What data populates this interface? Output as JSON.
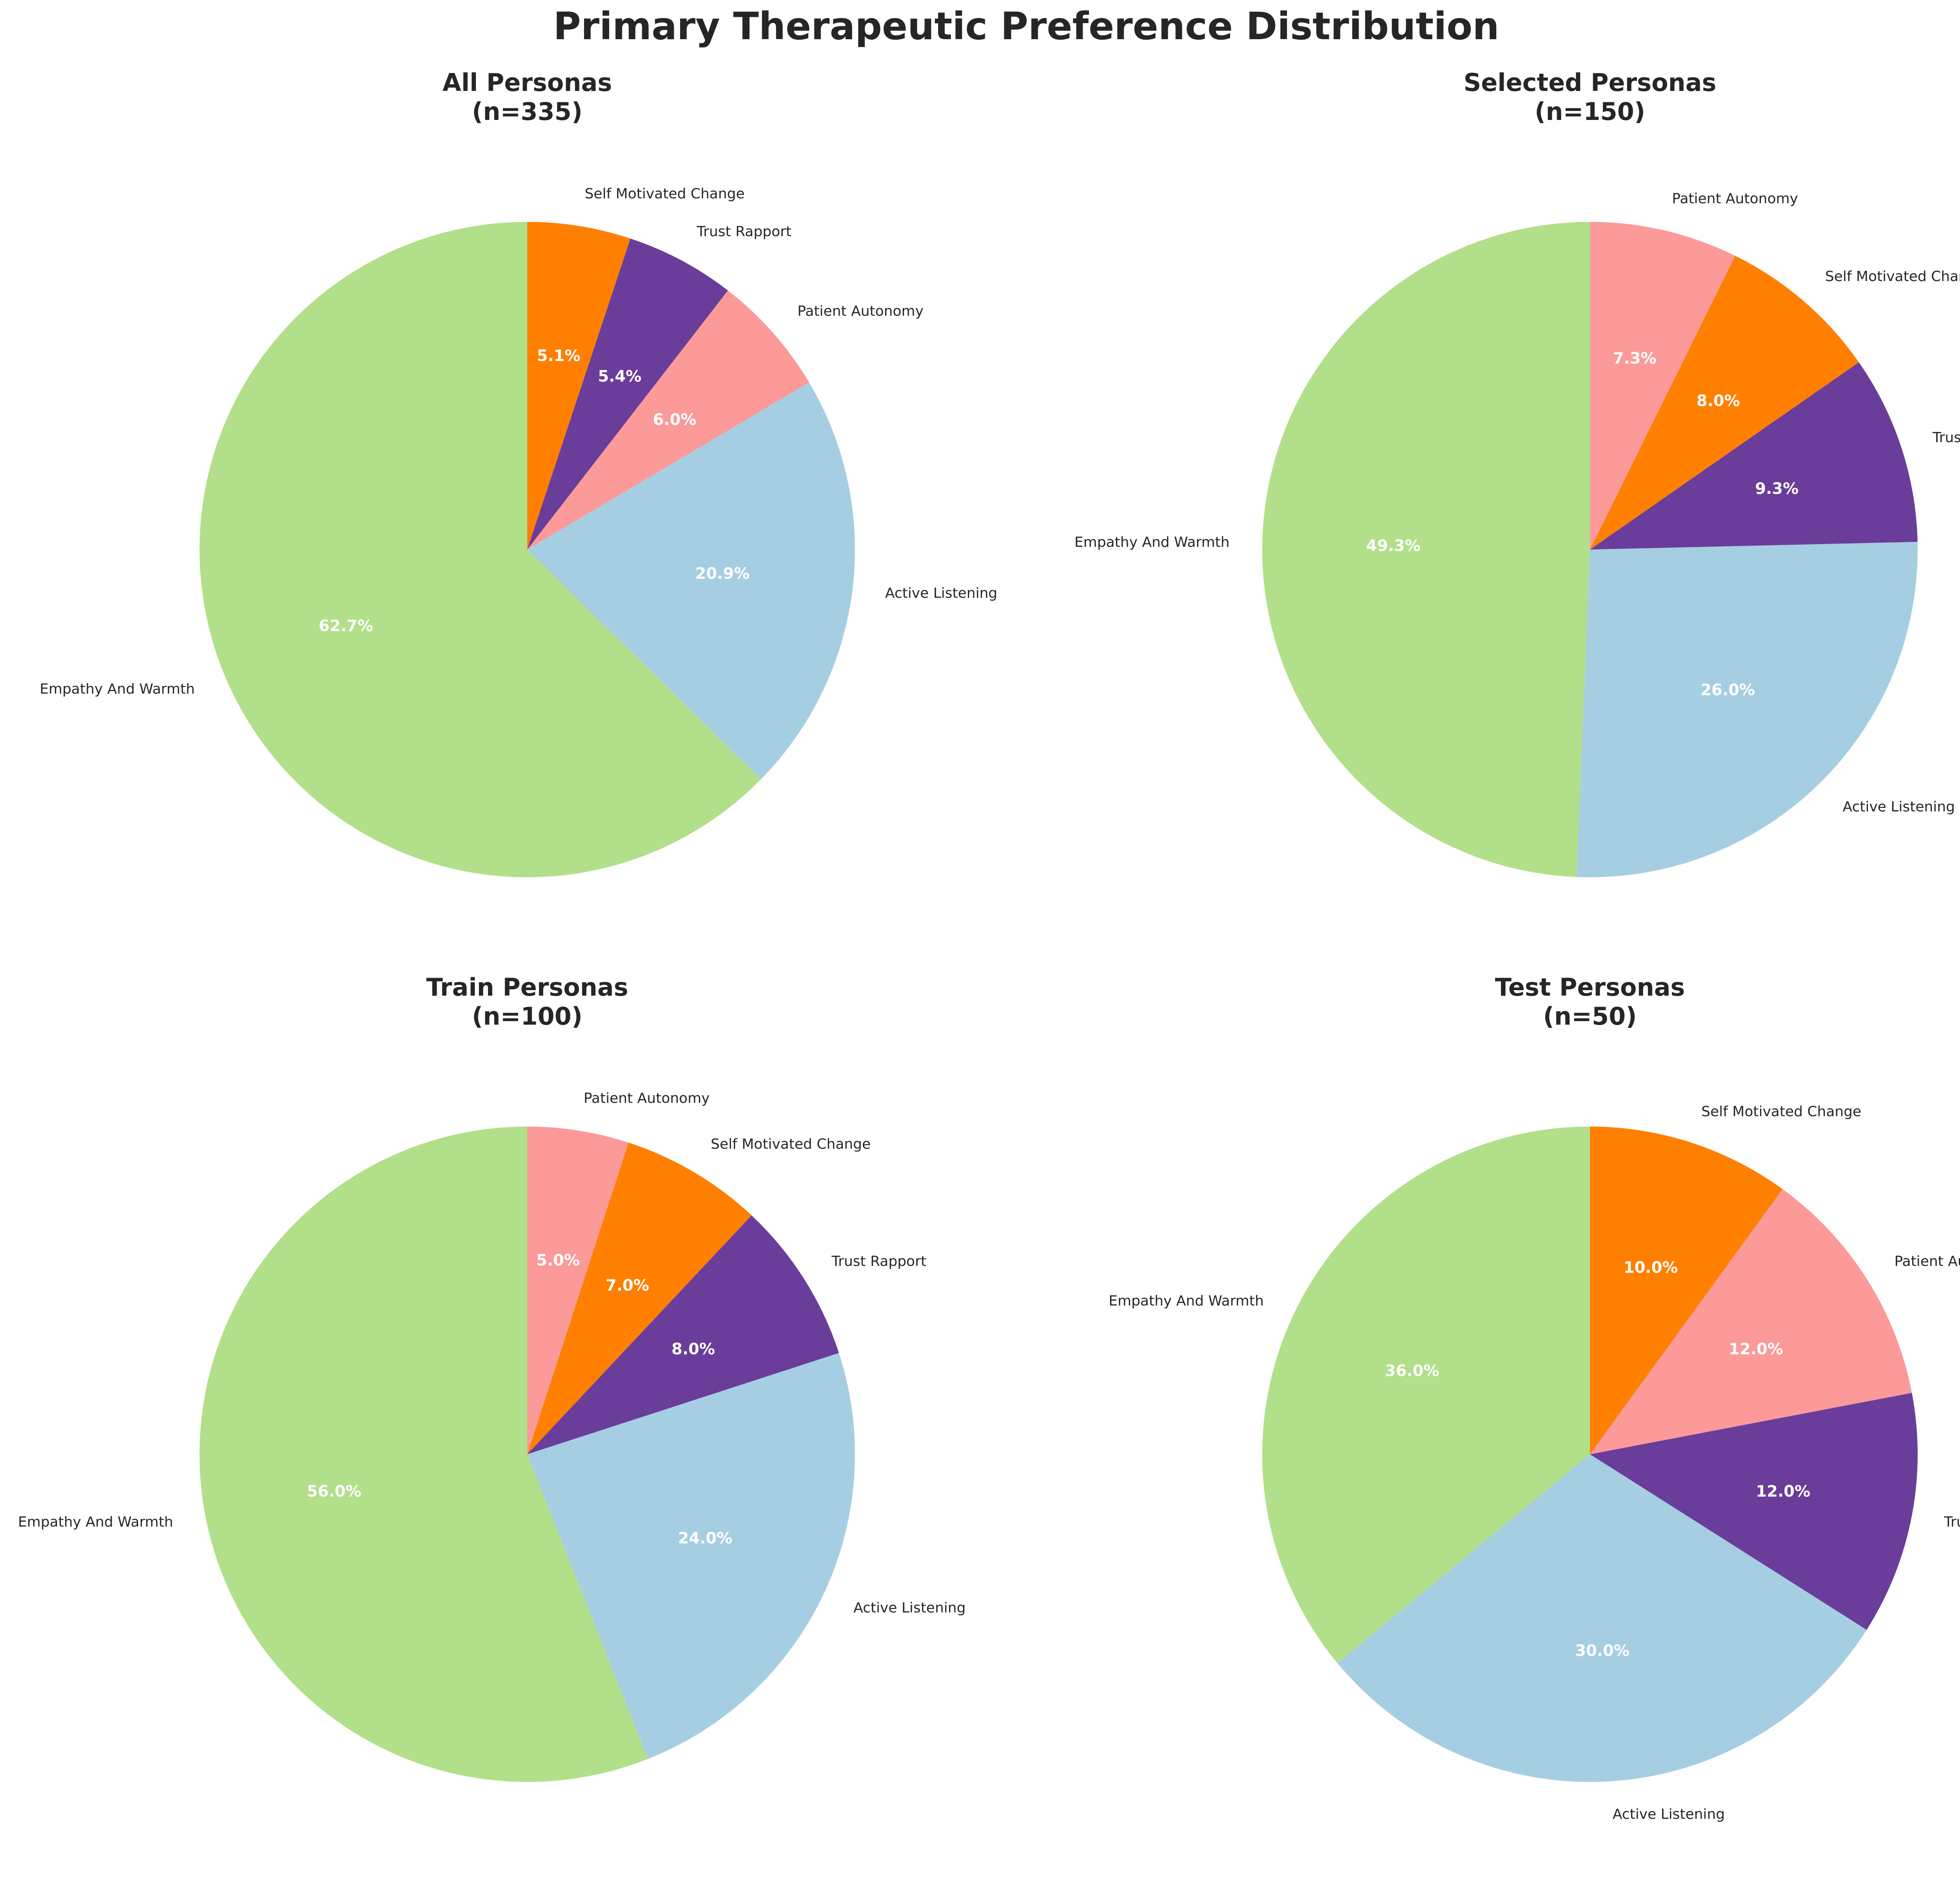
{
  "figure": {
    "title": "Primary Therapeutic Preference Distribution"
  },
  "colors": {
    "Empathy And Warmth": "#b2df8a",
    "Active Listening": "#a6cee3",
    "Patient Autonomy": "#fb9a99",
    "Trust Rapport": "#6a3d9a",
    "Self Motivated Change": "#ff7f00"
  },
  "chart_data": [
    {
      "type": "pie",
      "title_line1": "All Personas",
      "title_line2": "(n=335)",
      "start_angle_deg": 90,
      "direction": "counterclockwise",
      "slices": [
        {
          "label": "Empathy And Warmth",
          "value": 62.7,
          "pct_text": "62.7%"
        },
        {
          "label": "Active Listening",
          "value": 20.9,
          "pct_text": "20.9%"
        },
        {
          "label": "Patient Autonomy",
          "value": 6.0,
          "pct_text": "6.0%"
        },
        {
          "label": "Trust Rapport",
          "value": 5.4,
          "pct_text": "5.4%"
        },
        {
          "label": "Self Motivated Change",
          "value": 5.1,
          "pct_text": "5.1%"
        }
      ]
    },
    {
      "type": "pie",
      "title_line1": "Selected Personas",
      "title_line2": "(n=150)",
      "start_angle_deg": 90,
      "direction": "counterclockwise",
      "slices": [
        {
          "label": "Empathy And Warmth",
          "value": 49.3,
          "pct_text": "49.3%"
        },
        {
          "label": "Active Listening",
          "value": 26.0,
          "pct_text": "26.0%"
        },
        {
          "label": "Trust Rapport",
          "value": 9.3,
          "pct_text": "9.3%"
        },
        {
          "label": "Self Motivated Change",
          "value": 8.0,
          "pct_text": "8.0%"
        },
        {
          "label": "Patient Autonomy",
          "value": 7.3,
          "pct_text": "7.3%"
        }
      ]
    },
    {
      "type": "pie",
      "title_line1": "Train Personas",
      "title_line2": "(n=100)",
      "start_angle_deg": 90,
      "direction": "counterclockwise",
      "slices": [
        {
          "label": "Empathy And Warmth",
          "value": 56.0,
          "pct_text": "56.0%"
        },
        {
          "label": "Active Listening",
          "value": 24.0,
          "pct_text": "24.0%"
        },
        {
          "label": "Trust Rapport",
          "value": 8.0,
          "pct_text": "8.0%"
        },
        {
          "label": "Self Motivated Change",
          "value": 7.0,
          "pct_text": "7.0%"
        },
        {
          "label": "Patient Autonomy",
          "value": 5.0,
          "pct_text": "5.0%"
        }
      ]
    },
    {
      "type": "pie",
      "title_line1": "Test Personas",
      "title_line2": "(n=50)",
      "start_angle_deg": 90,
      "direction": "counterclockwise",
      "slices": [
        {
          "label": "Empathy And Warmth",
          "value": 36.0,
          "pct_text": "36.0%"
        },
        {
          "label": "Active Listening",
          "value": 30.0,
          "pct_text": "30.0%"
        },
        {
          "label": "Trust Rapport",
          "value": 12.0,
          "pct_text": "12.0%"
        },
        {
          "label": "Patient Autonomy",
          "value": 12.0,
          "pct_text": "12.0%"
        },
        {
          "label": "Self Motivated Change",
          "value": 10.0,
          "pct_text": "10.0%"
        }
      ]
    }
  ]
}
